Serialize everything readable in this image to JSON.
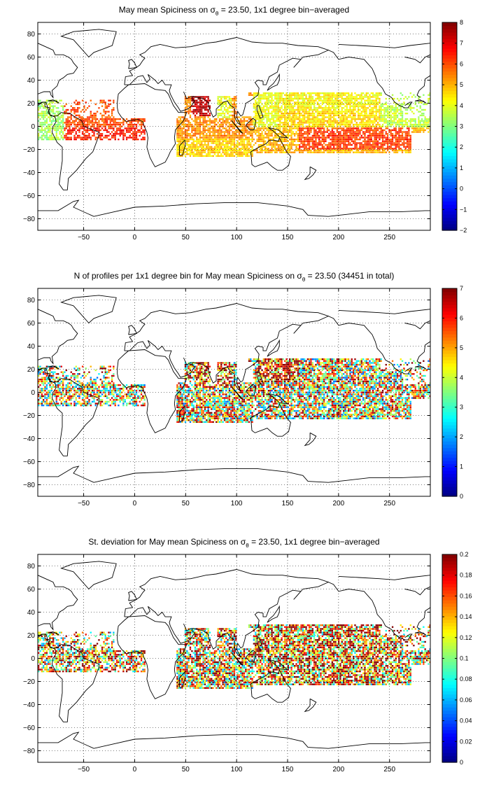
{
  "panels": [
    {
      "title": "May mean Spiciness on σ",
      "title_sub": "θ",
      "title_tail": " = 23.50, 1x1 degree bin−averaged",
      "colorbar_ticks": [
        "8",
        "7",
        "6",
        "5",
        "4",
        "3",
        "2",
        "1",
        "0",
        "−1",
        "−2"
      ],
      "colorbar_range": [
        -2,
        8
      ],
      "field": "spiciness"
    },
    {
      "title": "N of profiles per 1x1 degree bin for May mean Spiciness on σ",
      "title_sub": "θ",
      "title_tail": " = 23.50 (34451 in total)",
      "colorbar_ticks": [
        "7",
        "6",
        "5",
        "4",
        "3",
        "2",
        "1",
        "0"
      ],
      "colorbar_range": [
        0,
        7
      ],
      "field": "count"
    },
    {
      "title": "St. deviation for May mean Spiciness on σ",
      "title_sub": "θ",
      "title_tail": " = 23.50, 1x1 degree bin−averaged",
      "colorbar_ticks": [
        "0.2",
        "0.18",
        "0.16",
        "0.14",
        "0.12",
        "0.1",
        "0.08",
        "0.06",
        "0.04",
        "0.02",
        "0"
      ],
      "colorbar_range": [
        0,
        0.2
      ],
      "field": "stdev"
    }
  ],
  "map_axes": {
    "x_ticks": [
      "−50",
      "0",
      "50",
      "100",
      "150",
      "200",
      "250"
    ],
    "y_ticks": [
      "80",
      "60",
      "40",
      "20",
      "0",
      "−20",
      "−40",
      "−60",
      "−80"
    ],
    "xlim": [
      -95,
      290
    ],
    "ylim": [
      -90,
      90
    ],
    "grid": true,
    "colormap": "jet"
  }
}
